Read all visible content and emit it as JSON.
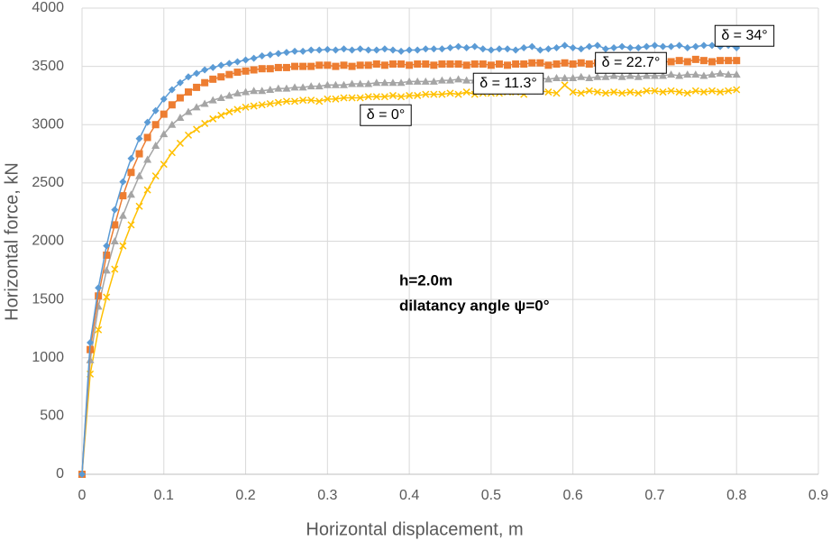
{
  "chart_data": {
    "type": "line",
    "x_label": "Horizontal displacement, m",
    "y_label": "Horizontal force, kN",
    "annotations": [
      "h=2.0m",
      "dilatancy angle ψ=0°"
    ],
    "xlim": [
      0,
      0.9
    ],
    "xticks": [
      0,
      0.1,
      0.2,
      0.3,
      0.4,
      0.5,
      0.6,
      0.7,
      0.8,
      0.9
    ],
    "ylim": [
      0,
      4000
    ],
    "yticks": [
      0,
      500,
      1000,
      1500,
      2000,
      2500,
      3000,
      3500,
      4000
    ],
    "grid": true,
    "x": [
      0,
      0.01,
      0.02,
      0.03,
      0.04,
      0.05,
      0.06,
      0.07,
      0.08,
      0.09,
      0.1,
      0.11,
      0.12,
      0.13,
      0.14,
      0.15,
      0.16,
      0.17,
      0.18,
      0.19,
      0.2,
      0.21,
      0.22,
      0.23,
      0.24,
      0.25,
      0.26,
      0.27,
      0.28,
      0.29,
      0.3,
      0.31,
      0.32,
      0.33,
      0.34,
      0.35,
      0.36,
      0.37,
      0.38,
      0.39,
      0.4,
      0.41,
      0.42,
      0.43,
      0.44,
      0.45,
      0.46,
      0.47,
      0.48,
      0.49,
      0.5,
      0.51,
      0.52,
      0.53,
      0.54,
      0.55,
      0.56,
      0.57,
      0.58,
      0.59,
      0.6,
      0.61,
      0.62,
      0.63,
      0.64,
      0.65,
      0.66,
      0.67,
      0.68,
      0.69,
      0.7,
      0.71,
      0.72,
      0.73,
      0.74,
      0.75,
      0.76,
      0.77,
      0.78,
      0.79,
      0.8
    ],
    "series": [
      {
        "name": "δ = 34°",
        "color": "#5b9bd5",
        "marker": "diamond",
        "values": [
          0,
          1130,
          1600,
          1960,
          2270,
          2510,
          2710,
          2880,
          3020,
          3120,
          3220,
          3300,
          3360,
          3410,
          3440,
          3470,
          3490,
          3510,
          3525,
          3540,
          3555,
          3570,
          3590,
          3600,
          3610,
          3620,
          3630,
          3630,
          3640,
          3640,
          3645,
          3640,
          3650,
          3640,
          3650,
          3640,
          3640,
          3650,
          3640,
          3630,
          3640,
          3640,
          3650,
          3650,
          3650,
          3660,
          3670,
          3660,
          3670,
          3650,
          3640,
          3650,
          3650,
          3640,
          3660,
          3670,
          3640,
          3650,
          3660,
          3680,
          3660,
          3650,
          3670,
          3680,
          3650,
          3660,
          3670,
          3660,
          3660,
          3670,
          3680,
          3670,
          3670,
          3680,
          3660,
          3670,
          3680,
          3680,
          3670,
          3680,
          3660
        ]
      },
      {
        "name": "δ = 22.7°",
        "color": "#ed7d31",
        "marker": "square",
        "values": [
          0,
          1070,
          1530,
          1880,
          2140,
          2390,
          2590,
          2750,
          2890,
          3000,
          3090,
          3170,
          3230,
          3280,
          3320,
          3360,
          3390,
          3410,
          3430,
          3450,
          3460,
          3470,
          3480,
          3480,
          3490,
          3490,
          3500,
          3500,
          3500,
          3510,
          3510,
          3500,
          3510,
          3500,
          3510,
          3510,
          3520,
          3510,
          3520,
          3520,
          3510,
          3520,
          3520,
          3510,
          3520,
          3520,
          3520,
          3510,
          3520,
          3520,
          3510,
          3520,
          3510,
          3520,
          3520,
          3530,
          3530,
          3510,
          3520,
          3530,
          3520,
          3530,
          3520,
          3530,
          3530,
          3530,
          3540,
          3520,
          3530,
          3540,
          3560,
          3540,
          3540,
          3550,
          3540,
          3560,
          3550,
          3540,
          3550,
          3550,
          3550
        ]
      },
      {
        "name": "δ = 11.3°",
        "color": "#a5a5a5",
        "marker": "triangle",
        "values": [
          0,
          980,
          1440,
          1750,
          2000,
          2220,
          2400,
          2560,
          2700,
          2820,
          2920,
          3000,
          3060,
          3110,
          3150,
          3180,
          3210,
          3230,
          3250,
          3270,
          3280,
          3290,
          3290,
          3300,
          3310,
          3310,
          3320,
          3320,
          3330,
          3330,
          3340,
          3340,
          3340,
          3350,
          3350,
          3350,
          3360,
          3360,
          3360,
          3360,
          3370,
          3370,
          3370,
          3370,
          3380,
          3380,
          3390,
          3380,
          3380,
          3390,
          3390,
          3390,
          3390,
          3400,
          3390,
          3400,
          3400,
          3390,
          3400,
          3400,
          3400,
          3410,
          3400,
          3410,
          3410,
          3420,
          3410,
          3420,
          3410,
          3420,
          3420,
          3420,
          3430,
          3420,
          3430,
          3430,
          3420,
          3430,
          3440,
          3430,
          3430
        ]
      },
      {
        "name": "δ = 0°",
        "color": "#ffc000",
        "marker": "x",
        "values": [
          0,
          860,
          1240,
          1520,
          1760,
          1960,
          2140,
          2300,
          2440,
          2560,
          2660,
          2760,
          2840,
          2910,
          2960,
          3010,
          3050,
          3080,
          3110,
          3130,
          3150,
          3160,
          3170,
          3180,
          3190,
          3200,
          3200,
          3210,
          3210,
          3200,
          3220,
          3220,
          3230,
          3230,
          3230,
          3240,
          3240,
          3240,
          3250,
          3240,
          3250,
          3250,
          3260,
          3260,
          3260,
          3270,
          3260,
          3280,
          3260,
          3270,
          3270,
          3270,
          3280,
          3280,
          3260,
          3290,
          3290,
          3280,
          3270,
          3340,
          3280,
          3270,
          3290,
          3280,
          3270,
          3280,
          3270,
          3280,
          3270,
          3290,
          3290,
          3280,
          3290,
          3280,
          3270,
          3290,
          3280,
          3290,
          3280,
          3290,
          3300
        ]
      }
    ]
  }
}
